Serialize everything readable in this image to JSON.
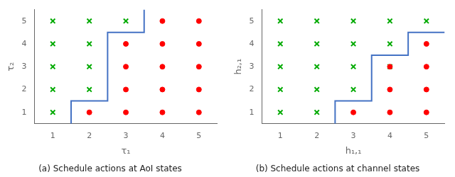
{
  "chart_data": [
    {
      "type": "scatter",
      "title": "(a) Schedule actions at AoI states",
      "x_label": "τ₁",
      "y_label": "τ₂",
      "xlim": [
        0.5,
        5.5
      ],
      "ylim": [
        0.5,
        5.5
      ],
      "xticks": [
        1,
        2,
        3,
        4,
        5
      ],
      "yticks": [
        1,
        2,
        3,
        4,
        5
      ],
      "grid": false,
      "series": [
        {
          "type": "line",
          "color": "#4472c4",
          "x": [
            1.5,
            1.5,
            2.5,
            2.5,
            3.5,
            3.5
          ],
          "values": [
            0.5,
            1.5,
            1.5,
            4.5,
            4.5,
            5.5
          ]
        },
        {
          "type": "scatter",
          "marker": "circle",
          "color": "#ff0000",
          "x": [
            2,
            3,
            4,
            5,
            3,
            4,
            5,
            3,
            4,
            5,
            3,
            4,
            5,
            4,
            5
          ],
          "values": [
            1,
            1,
            1,
            1,
            2,
            2,
            2,
            3,
            3,
            3,
            4,
            4,
            4,
            5,
            5
          ]
        },
        {
          "type": "scatter",
          "marker": "x",
          "color": "#00aa00",
          "x": [
            1,
            1,
            2,
            1,
            2,
            1,
            2,
            1,
            2,
            3
          ],
          "values": [
            1,
            2,
            2,
            3,
            3,
            4,
            4,
            5,
            5,
            5
          ]
        }
      ]
    },
    {
      "type": "scatter",
      "title": "(b) Schedule actions at channel states",
      "x_label": "h₁,₁",
      "y_label": "h₂,₁",
      "xlim": [
        0.5,
        5.5
      ],
      "ylim": [
        0.5,
        5.5
      ],
      "xticks": [
        1,
        2,
        3,
        4,
        5
      ],
      "yticks": [
        1,
        2,
        3,
        4,
        5
      ],
      "grid": false,
      "series": [
        {
          "type": "line",
          "color": "#4472c4",
          "x": [
            2.5,
            2.5,
            3.5,
            3.5,
            4.5,
            4.5,
            5.5
          ],
          "values": [
            0.5,
            1.5,
            1.5,
            3.5,
            3.5,
            4.5,
            4.5
          ]
        },
        {
          "type": "scatter",
          "marker": "circle",
          "color": "#ff0000",
          "x": [
            3,
            4,
            5,
            4,
            5,
            4,
            5,
            5
          ],
          "values": [
            1,
            1,
            1,
            2,
            2,
            3,
            3,
            4
          ]
        },
        {
          "type": "scatter",
          "marker": "x",
          "color": "#00aa00",
          "x": [
            1,
            2,
            1,
            2,
            3,
            1,
            2,
            3,
            4,
            1,
            2,
            3,
            4,
            1,
            2,
            3,
            4,
            5
          ],
          "values": [
            1,
            1,
            2,
            2,
            2,
            3,
            3,
            3,
            3,
            4,
            4,
            4,
            4,
            5,
            5,
            5,
            5,
            5
          ]
        }
      ]
    }
  ]
}
